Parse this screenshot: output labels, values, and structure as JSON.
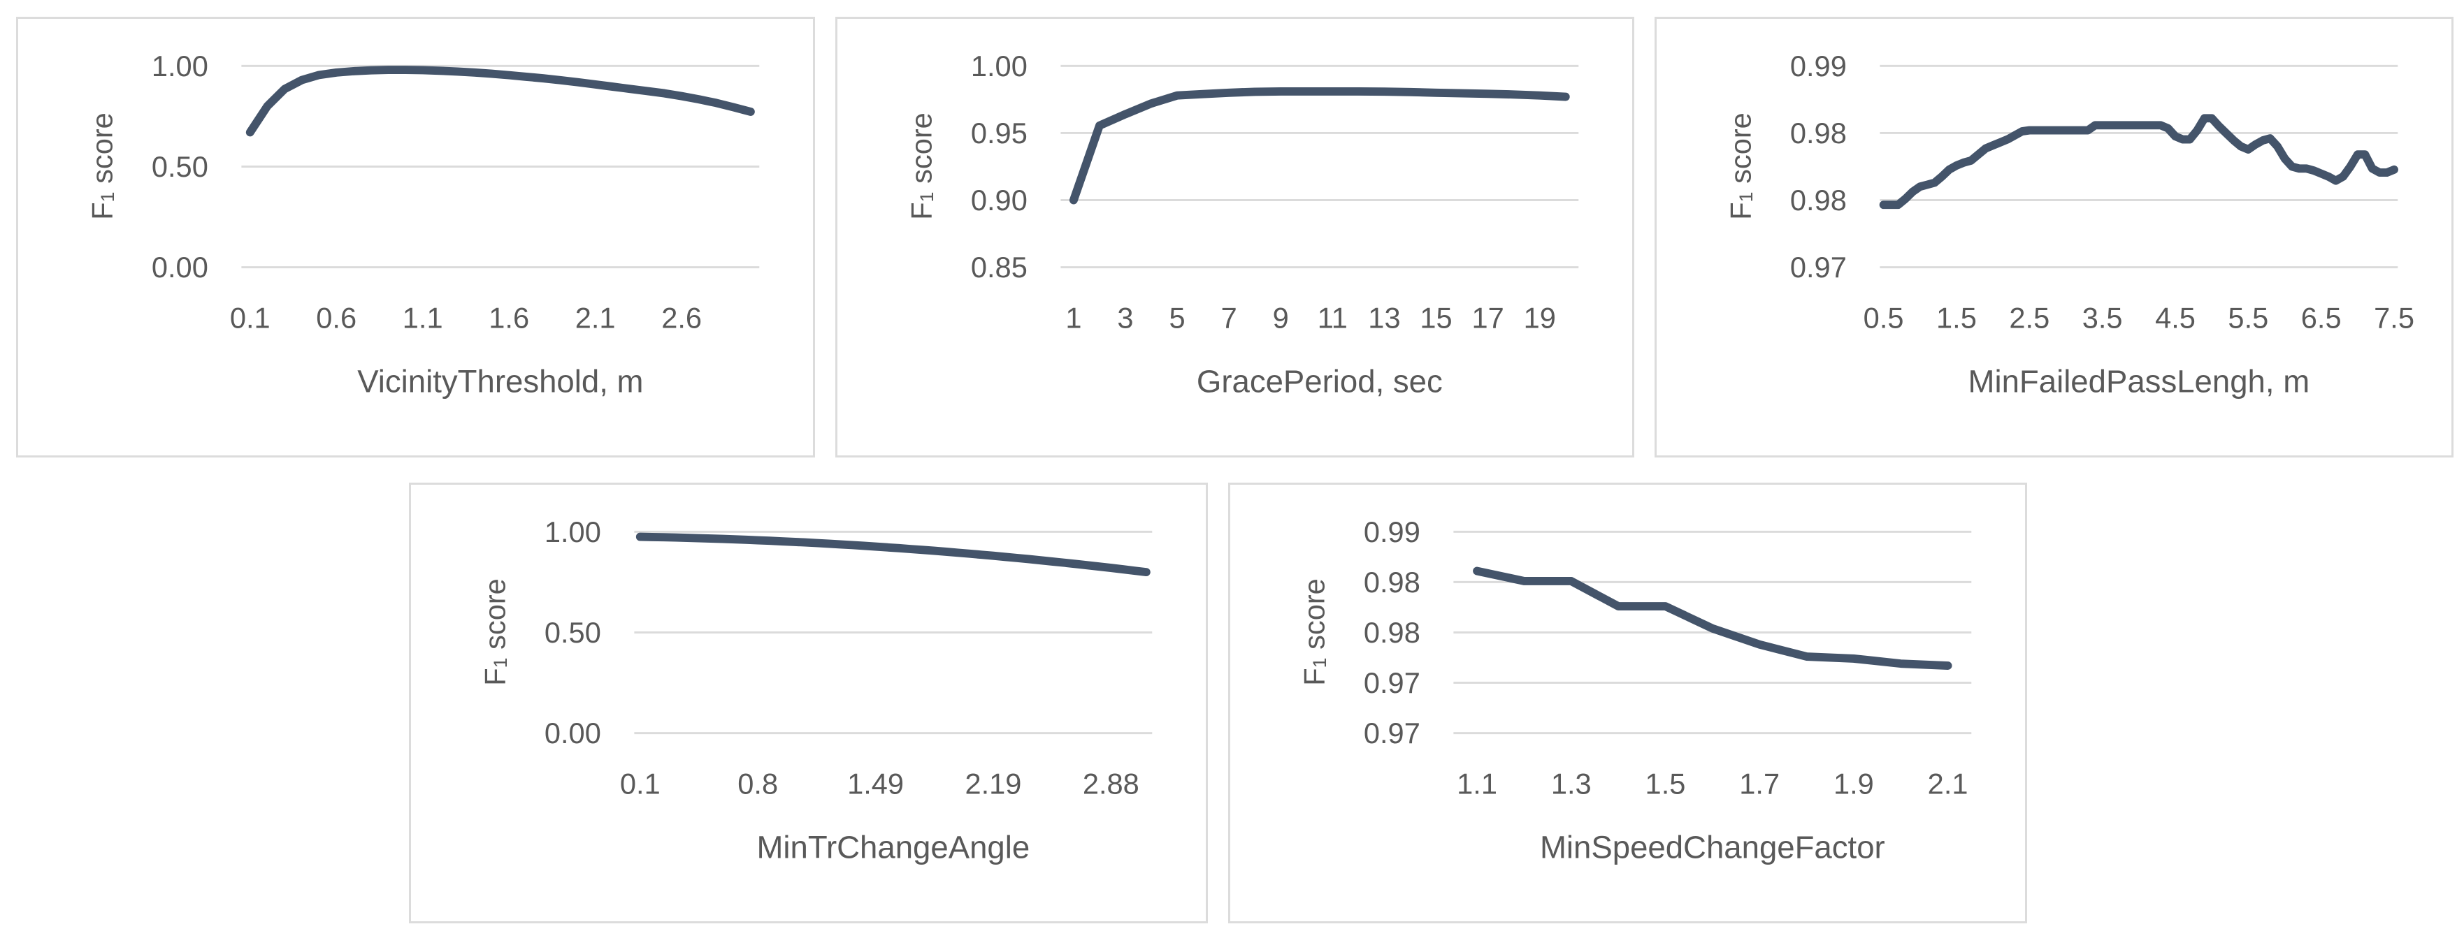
{
  "style": {
    "series_color": "#44546A",
    "grid_color": "#DBDBDB",
    "text_color": "#595959",
    "panel_border_color": "#DCDCDC",
    "background": "#FFFFFF"
  },
  "chart_data": {
    "figure_type": "small-multiples line charts, F1 score parameter sensitivity",
    "charts": [
      {
        "type": "line",
        "name": "vicinity-threshold",
        "ylabel": "F₁ score",
        "xlabel": "VicinityThreshold, m",
        "legend": "none",
        "grid": "horizontal",
        "y_axis": {
          "min": 0.0,
          "max": 1.0,
          "gridlines": [
            {
              "value": 1.0,
              "label": "1.00"
            },
            {
              "value": 0.5,
              "label": "0.50"
            },
            {
              "value": 0.0,
              "label": "0.00"
            }
          ]
        },
        "x_ticks": {
          "indices": [
            0,
            5,
            10,
            15,
            20,
            25
          ],
          "labels": [
            "0.1",
            "0.6",
            "1.1",
            "1.6",
            "2.1",
            "2.6"
          ]
        },
        "x": [
          0.1,
          0.2,
          0.3,
          0.4,
          0.5,
          0.6,
          0.7,
          0.8,
          0.9,
          1.0,
          1.1,
          1.2,
          1.3,
          1.4,
          1.5,
          1.6,
          1.7,
          1.8,
          1.9,
          2.0,
          2.1,
          2.2,
          2.3,
          2.4,
          2.5,
          2.6,
          2.7,
          2.8,
          2.9,
          3.0
        ],
        "values": [
          0.67,
          0.8,
          0.885,
          0.93,
          0.955,
          0.967,
          0.974,
          0.978,
          0.98,
          0.98,
          0.979,
          0.976,
          0.972,
          0.967,
          0.961,
          0.954,
          0.946,
          0.938,
          0.929,
          0.919,
          0.908,
          0.897,
          0.886,
          0.875,
          0.864,
          0.85,
          0.834,
          0.816,
          0.795,
          0.772
        ]
      },
      {
        "type": "line",
        "name": "grace-period",
        "ylabel": "F₁ score",
        "xlabel": "GracePeriod, sec",
        "legend": "none",
        "grid": "horizontal",
        "y_axis": {
          "min": 0.85,
          "max": 1.0,
          "gridlines": [
            {
              "value": 1.0,
              "label": "1.00"
            },
            {
              "value": 0.95,
              "label": "0.95"
            },
            {
              "value": 0.9,
              "label": "0.90"
            },
            {
              "value": 0.85,
              "label": "0.85"
            }
          ]
        },
        "x_ticks": {
          "indices": [
            0,
            2,
            4,
            6,
            8,
            10,
            12,
            14,
            16,
            18
          ],
          "labels": [
            "1",
            "3",
            "5",
            "7",
            "9",
            "11",
            "13",
            "15",
            "17",
            "19"
          ]
        },
        "x": [
          1,
          2,
          3,
          4,
          5,
          6,
          7,
          8,
          9,
          10,
          11,
          12,
          13,
          14,
          15,
          16,
          17,
          18,
          19,
          20
        ],
        "values": [
          0.9,
          0.9555,
          0.964,
          0.972,
          0.978,
          0.979,
          0.98,
          0.9807,
          0.981,
          0.981,
          0.981,
          0.981,
          0.9808,
          0.9805,
          0.98,
          0.9796,
          0.9792,
          0.9787,
          0.978,
          0.977
        ]
      },
      {
        "type": "line",
        "name": "min-failed-pass-length",
        "ylabel": "F₁ score",
        "xlabel": "MinFailedPassLengh, m",
        "legend": "none",
        "grid": "horizontal",
        "y_axis": {
          "min": 0.97,
          "max": 0.99,
          "gridlines": [
            {
              "value": 0.99,
              "label": "0.99"
            },
            {
              "value": 0.983333,
              "label": "0.98"
            },
            {
              "value": 0.976667,
              "label": "0.98"
            },
            {
              "value": 0.97,
              "label": "0.97"
            }
          ]
        },
        "x_ticks": {
          "indices": [
            0,
            10,
            20,
            30,
            40,
            50,
            60,
            70
          ],
          "labels": [
            "0.5",
            "1.5",
            "2.5",
            "3.5",
            "4.5",
            "5.5",
            "6.5",
            "7.5"
          ]
        },
        "x": [
          0.5,
          0.6,
          0.7,
          0.8,
          0.9,
          1.0,
          1.1,
          1.2,
          1.3,
          1.4,
          1.5,
          1.6,
          1.7,
          1.8,
          1.9,
          2.0,
          2.1,
          2.2,
          2.3,
          2.4,
          2.5,
          2.6,
          2.7,
          2.8,
          2.9,
          3.0,
          3.1,
          3.2,
          3.3,
          3.4,
          3.5,
          3.6,
          3.7,
          3.8,
          3.9,
          4.0,
          4.1,
          4.2,
          4.3,
          4.4,
          4.5,
          4.6,
          4.7,
          4.8,
          4.9,
          5.0,
          5.1,
          5.2,
          5.3,
          5.4,
          5.5,
          5.6,
          5.7,
          5.8,
          5.9,
          6.0,
          6.1,
          6.2,
          6.3,
          6.4,
          6.5,
          6.6,
          6.7,
          6.8,
          6.9,
          7.0,
          7.1,
          7.2,
          7.3,
          7.4,
          7.5
        ],
        "values": [
          0.9762,
          0.9762,
          0.9762,
          0.9768,
          0.9775,
          0.978,
          0.9782,
          0.9784,
          0.979,
          0.9797,
          0.9801,
          0.9804,
          0.9806,
          0.9812,
          0.9818,
          0.9821,
          0.9824,
          0.9827,
          0.9831,
          0.9835,
          0.9836,
          0.9836,
          0.9836,
          0.9836,
          0.9836,
          0.9836,
          0.9836,
          0.9836,
          0.9836,
          0.9841,
          0.9841,
          0.9841,
          0.9841,
          0.9841,
          0.9841,
          0.9841,
          0.9841,
          0.9841,
          0.9841,
          0.9838,
          0.983,
          0.9827,
          0.9827,
          0.9836,
          0.9848,
          0.9848,
          0.984,
          0.9833,
          0.9826,
          0.982,
          0.9817,
          0.9822,
          0.9826,
          0.9828,
          0.982,
          0.9808,
          0.98,
          0.9798,
          0.9798,
          0.9796,
          0.9793,
          0.979,
          0.9786,
          0.979,
          0.98,
          0.9812,
          0.9812,
          0.9798,
          0.9794,
          0.9794,
          0.9797
        ]
      },
      {
        "type": "line",
        "name": "min-tr-change-angle",
        "ylabel": "F₁ score",
        "xlabel": "MinTrChangeAngle",
        "legend": "none",
        "grid": "horizontal",
        "y_axis": {
          "min": 0.0,
          "max": 1.0,
          "gridlines": [
            {
              "value": 1.0,
              "label": "1.00"
            },
            {
              "value": 0.5,
              "label": "0.50"
            },
            {
              "value": 0.0,
              "label": "0.00"
            }
          ]
        },
        "x_ticks": {
          "indices": [
            0,
            10,
            20,
            30,
            40
          ],
          "labels": [
            "0.1",
            "0.8",
            "1.49",
            "2.19",
            "2.88"
          ]
        },
        "x": [
          0.1,
          0.17,
          0.24,
          0.31,
          0.38,
          0.45,
          0.52,
          0.59,
          0.66,
          0.73,
          0.8,
          0.87,
          0.94,
          1.01,
          1.08,
          1.15,
          1.22,
          1.29,
          1.36,
          1.42,
          1.49,
          1.56,
          1.63,
          1.7,
          1.77,
          1.84,
          1.91,
          1.98,
          2.05,
          2.12,
          2.19,
          2.26,
          2.33,
          2.4,
          2.47,
          2.54,
          2.61,
          2.68,
          2.75,
          2.81,
          2.88,
          2.95,
          3.02,
          3.09
        ],
        "values": [
          0.975,
          0.9739,
          0.9727,
          0.9714,
          0.9699,
          0.9682,
          0.9664,
          0.9645,
          0.9624,
          0.9602,
          0.9579,
          0.9554,
          0.9527,
          0.95,
          0.947,
          0.9439,
          0.9407,
          0.9373,
          0.9339,
          0.9302,
          0.9264,
          0.9225,
          0.9184,
          0.9142,
          0.9099,
          0.9054,
          0.9007,
          0.8959,
          0.891,
          0.8859,
          0.8807,
          0.8753,
          0.8698,
          0.8642,
          0.8584,
          0.8524,
          0.8463,
          0.8401,
          0.8337,
          0.8272,
          0.8205,
          0.8137,
          0.8067,
          0.7996
        ]
      },
      {
        "type": "line",
        "name": "min-speed-change-factor",
        "ylabel": "F₁ score",
        "xlabel": "MinSpeedChangeFactor",
        "legend": "none",
        "grid": "horizontal",
        "y_axis": {
          "min": 0.97,
          "max": 0.99,
          "gridlines": [
            {
              "value": 0.99,
              "label": "0.99"
            },
            {
              "value": 0.985,
              "label": "0.98"
            },
            {
              "value": 0.98,
              "label": "0.98"
            },
            {
              "value": 0.975,
              "label": "0.97"
            },
            {
              "value": 0.97,
              "label": "0.97"
            }
          ]
        },
        "x_ticks": {
          "indices": [
            0,
            2,
            4,
            6,
            8,
            10
          ],
          "labels": [
            "1.1",
            "1.3",
            "1.5",
            "1.7",
            "1.9",
            "2.1"
          ]
        },
        "x": [
          1.1,
          1.2,
          1.3,
          1.4,
          1.5,
          1.6,
          1.7,
          1.8,
          1.9,
          2.0,
          2.1
        ],
        "values": [
          0.9861,
          0.9851,
          0.9851,
          0.9826,
          0.9826,
          0.9804,
          0.9788,
          0.9776,
          0.9774,
          0.9769,
          0.9767
        ]
      }
    ]
  }
}
